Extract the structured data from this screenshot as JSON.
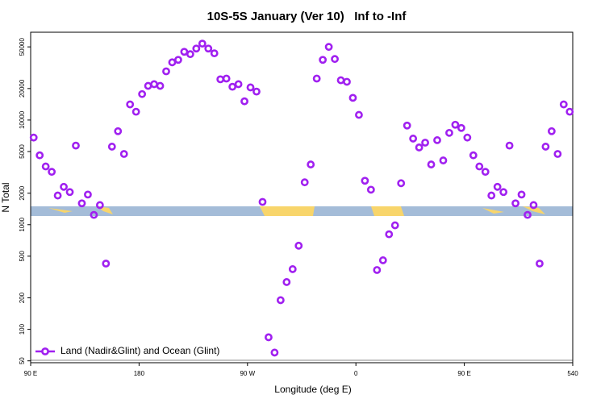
{
  "chart_data": {
    "type": "scatter",
    "title": "10S-5S January (Ver 10)   Inf to -Inf",
    "x_label": "Longitude (deg E)",
    "y_label": "N Total",
    "log_y": true,
    "color": "#a020f0",
    "legend": "bottom-left",
    "xlim": [
      90,
      540
    ],
    "xticks": [
      {
        "value": 90,
        "label": "90 E"
      },
      180,
      {
        "value": 270,
        "label": "90 W"
      },
      {
        "value": 360,
        "label": "0"
      },
      {
        "value": 450,
        "label": "90 E"
      },
      540
    ],
    "ylim": [
      48,
      69000
    ],
    "yticks": [
      50,
      100,
      200,
      500,
      1000,
      2000,
      5000,
      10000,
      20000,
      50000
    ],
    "series": [
      {
        "name": "Land (Nadir&Glint) and Ocean (Glint)",
        "color": "#a020f0",
        "x": [
          92.5,
          97.5,
          102.5,
          107.5,
          112.5,
          117.5,
          122.5,
          127.5,
          132.5,
          137.5,
          142.5,
          147.5,
          152.5,
          157.5,
          162.5,
          167.5,
          172.5,
          177.5,
          182.5,
          187.5,
          192.5,
          197.5,
          202.5,
          207.5,
          212.5,
          217.5,
          222.5,
          227.5,
          232.5,
          237.5,
          242.5,
          247.5,
          252.5,
          257.5,
          262.5,
          267.5,
          272.5,
          277.5,
          282.5,
          287.5,
          292.5,
          297.5,
          302.5,
          307.5,
          312.5,
          317.5,
          322.5,
          327.5,
          332.5,
          337.5,
          342.5,
          347.5,
          352.5,
          357.5,
          362.5,
          367.5,
          372.5,
          377.5,
          382.5,
          387.5,
          392.5,
          397.5,
          402.5,
          407.5,
          412.5,
          417.5,
          422.5,
          427.5,
          432.5,
          437.5,
          442.5,
          447.5,
          452.5,
          457.5,
          462.5,
          467.5,
          472.5,
          477.5,
          482.5,
          487.5,
          492.5,
          497.5,
          502.5,
          507.5,
          512.5,
          517.5,
          522.5,
          527.5,
          532.5,
          537.5
        ],
        "values": [
          6800,
          4600,
          3600,
          3200,
          1900,
          2300,
          2050,
          5700,
          1600,
          1940,
          1240,
          1540,
          425,
          5570,
          7820,
          4740,
          14100,
          12000,
          17700,
          21200,
          22000,
          21200,
          29200,
          35600,
          37600,
          44900,
          42600,
          48200,
          53700,
          48200,
          43400,
          24500,
          24900,
          20800,
          22000,
          15100,
          20500,
          18700,
          1650,
          84,
          60,
          190,
          283,
          376,
          630,
          2540,
          3760,
          24900,
          37600,
          50000,
          38300,
          24000,
          23200,
          16300,
          11200,
          2630,
          2160,
          369,
          457,
          810,
          986,
          2490,
          8860,
          6650,
          5470,
          6080,
          3760,
          6420,
          4110,
          7540,
          9020,
          8400,
          6800,
          4600,
          3600,
          3200,
          1900,
          2300,
          2050,
          5700,
          1600,
          1940,
          1240,
          1540,
          425,
          5570,
          7820,
          4740,
          14100,
          12000
        ]
      }
    ]
  }
}
